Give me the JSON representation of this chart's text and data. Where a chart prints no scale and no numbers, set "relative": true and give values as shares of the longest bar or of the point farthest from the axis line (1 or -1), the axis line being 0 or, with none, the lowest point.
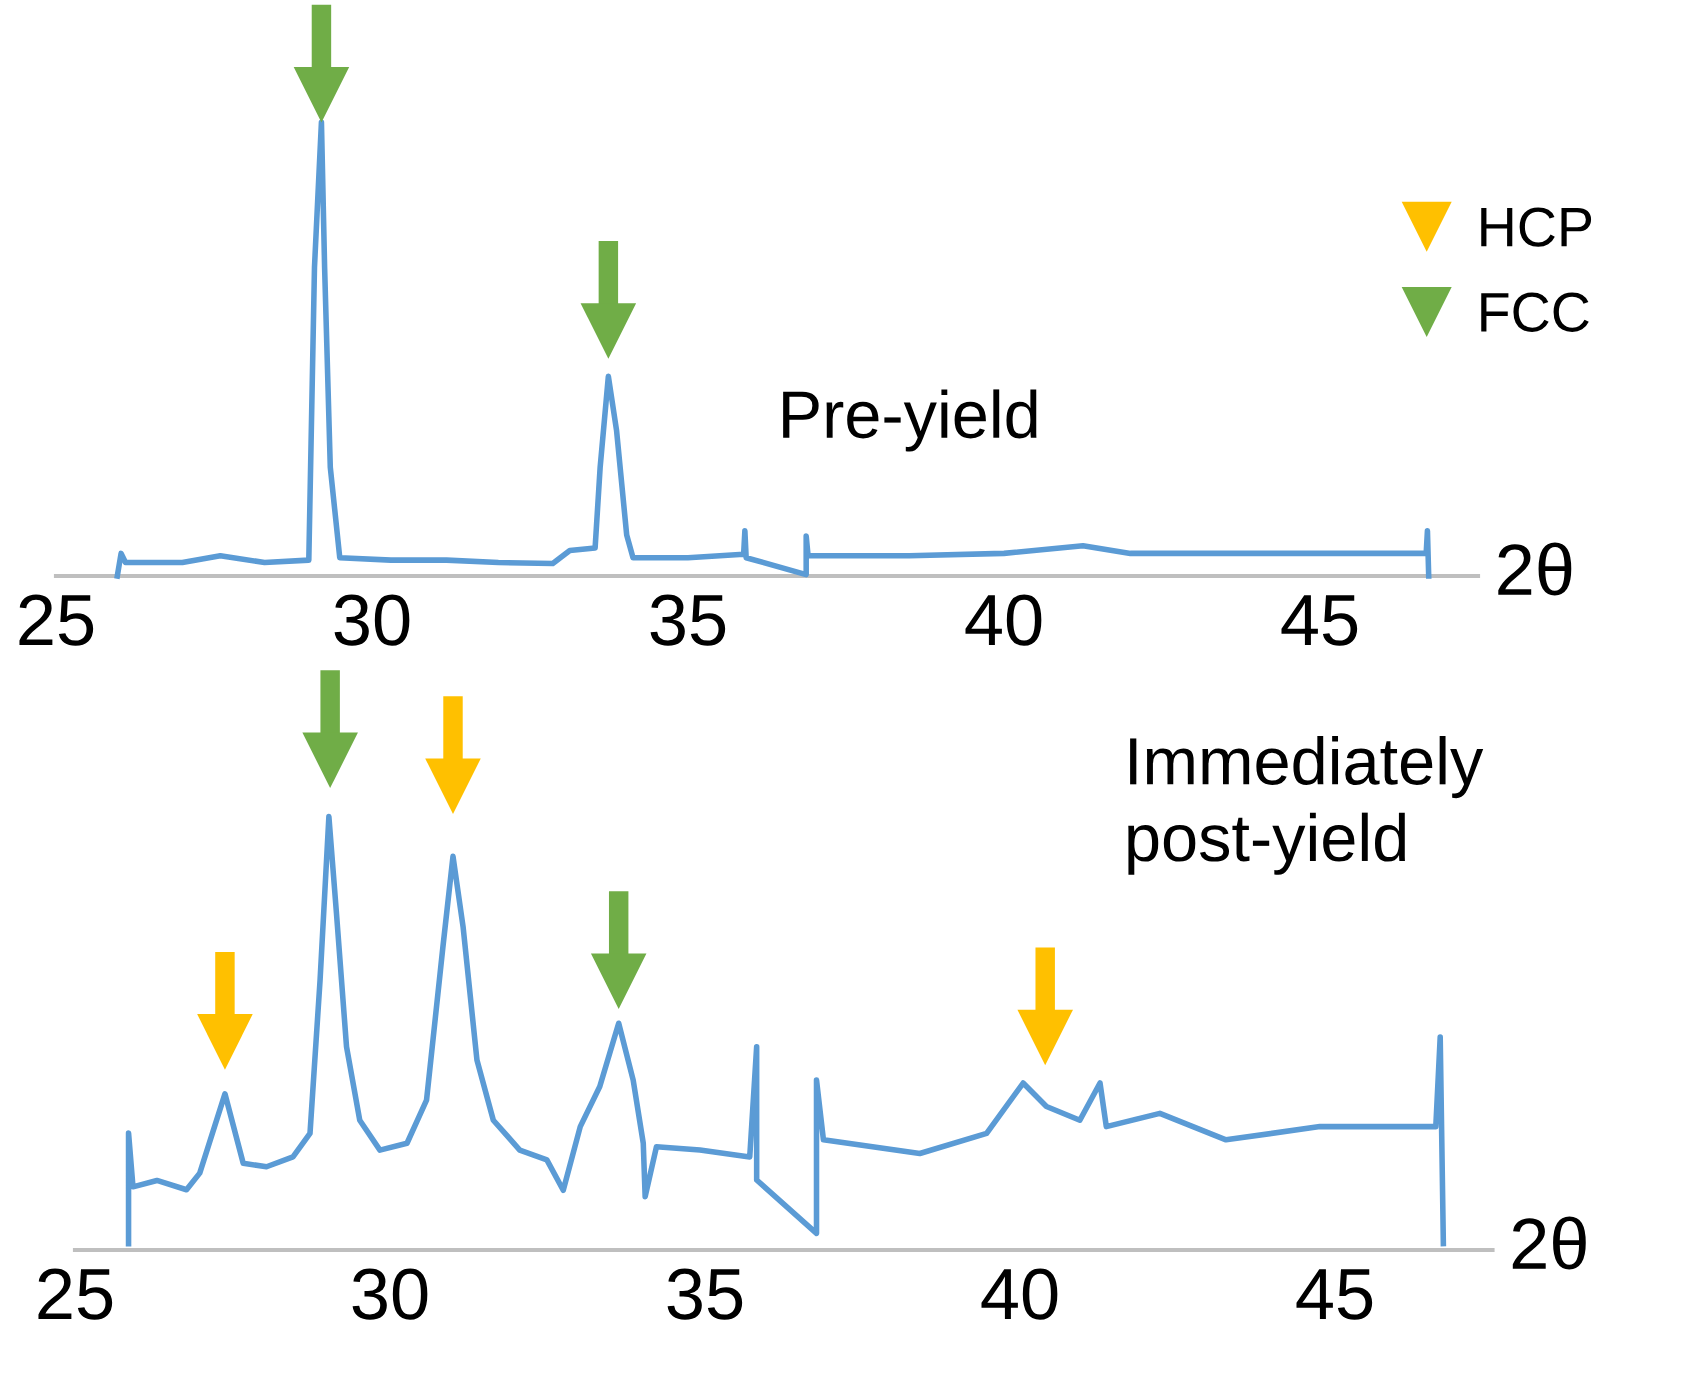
{
  "chart_data": [
    {
      "type": "line",
      "relative": true,
      "xlabel": "2θ",
      "xlim": [
        25.0,
        47.5
      ],
      "xticks": [
        25,
        30,
        35,
        40,
        45
      ],
      "grid": false,
      "legend": "top right",
      "annotations": [
        "Pre-yield"
      ],
      "series": [
        {
          "color": "#5b9bd5",
          "marker": "none",
          "x": [
            25.97,
            26.03,
            26.1,
            27.0,
            27.6,
            28.3,
            29.0,
            29.09,
            29.2,
            29.25,
            29.34,
            29.49,
            30.3,
            31.18,
            32.0,
            32.86,
            33.13,
            33.53,
            33.61,
            33.74,
            33.87,
            34.03,
            34.13,
            35.0,
            35.88,
            35.9,
            35.92,
            36.87,
            36.87,
            36.9,
            38.5,
            40.0,
            41.25,
            42.0,
            44.0,
            46.68,
            46.7,
            46.72
          ],
          "values": [
            0.0,
            0.047,
            0.028,
            0.028,
            0.042,
            0.028,
            0.033,
            0.642,
            0.943,
            0.642,
            0.226,
            0.038,
            0.033,
            0.033,
            0.028,
            0.026,
            0.053,
            0.058,
            0.226,
            0.415,
            0.302,
            0.085,
            0.038,
            0.038,
            0.045,
            0.094,
            0.038,
            0.003,
            0.083,
            0.042,
            0.042,
            0.047,
            0.063,
            0.047,
            0.047,
            0.047,
            0.094,
            0.0
          ]
        },
        {
          "type": "scatter",
          "name": "HCP",
          "color": "#ffc000",
          "marker": "triangle"
        },
        {
          "type": "scatter",
          "name": "FCC",
          "color": "#70ad47",
          "marker": "triangle",
          "x": [
            29.2,
            33.74
          ],
          "values": [
            1.0,
            0.509
          ]
        }
      ]
    },
    {
      "type": "line",
      "relative": true,
      "xlabel": "2θ",
      "xlim": [
        25.0,
        47.5
      ],
      "xticks": [
        25,
        30,
        35,
        40,
        45
      ],
      "grid": false,
      "legend": false,
      "annotations": [
        "Immediately post-yield"
      ],
      "series": [
        {
          "color": "#5b9bd5",
          "marker": "none",
          "x": [
            25.85,
            25.85,
            25.92,
            26.3,
            26.77,
            26.98,
            27.38,
            27.67,
            28.04,
            28.46,
            28.73,
            28.89,
            29.03,
            29.15,
            29.31,
            29.52,
            29.84,
            30.27,
            30.58,
            30.84,
            31.0,
            31.16,
            31.38,
            31.64,
            32.06,
            32.49,
            32.75,
            33.02,
            33.33,
            33.63,
            33.86,
            34.02,
            34.05,
            34.23,
            34.92,
            35.71,
            35.82,
            35.82,
            36.77,
            36.77,
            36.88,
            38.41,
            39.47,
            40.05,
            40.42,
            40.95,
            41.27,
            41.37,
            42.22,
            43.27,
            44.76,
            46.6,
            46.67,
            46.72
          ],
          "values": [
            0.013,
            0.239,
            0.129,
            0.142,
            0.123,
            0.157,
            0.319,
            0.177,
            0.17,
            0.19,
            0.238,
            0.551,
            0.885,
            0.688,
            0.415,
            0.265,
            0.204,
            0.218,
            0.306,
            0.619,
            0.804,
            0.66,
            0.388,
            0.265,
            0.204,
            0.184,
            0.122,
            0.252,
            0.334,
            0.463,
            0.347,
            0.218,
            0.109,
            0.211,
            0.204,
            0.19,
            0.415,
            0.143,
            0.034,
            0.347,
            0.225,
            0.197,
            0.238,
            0.341,
            0.293,
            0.265,
            0.341,
            0.252,
            0.279,
            0.225,
            0.252,
            0.252,
            0.435,
            0.013
          ]
        },
        {
          "type": "scatter",
          "color": "#ffc000",
          "marker": "triangle",
          "x": [
            27.38,
            31.0,
            40.4
          ],
          "values": [
            0.425,
            0.947,
            0.434
          ]
        },
        {
          "type": "scatter",
          "color": "#70ad47",
          "marker": "triangle",
          "x": [
            29.05,
            33.63
          ],
          "values": [
            1.0,
            0.549
          ]
        }
      ]
    }
  ]
}
